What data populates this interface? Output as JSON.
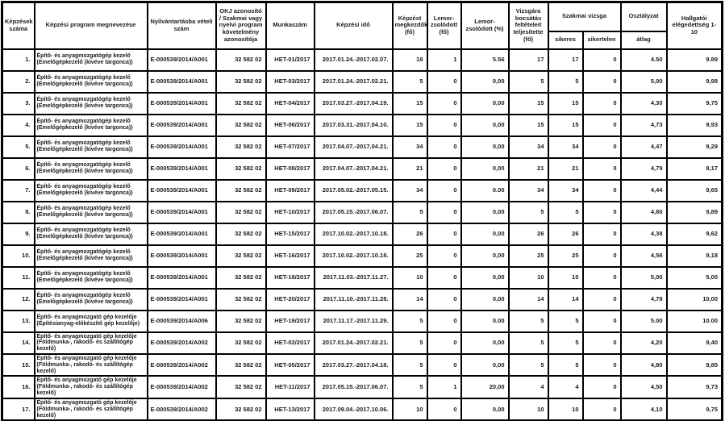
{
  "colors": {
    "background": "#ffffff",
    "border": "#000000",
    "text": "#1a1a1a"
  },
  "table": {
    "headers": {
      "kepzesek_szama": "Képzések száma",
      "program": "Képzési program megnevezése",
      "nyilvantartas": "Nyilvántartásba vételi szám",
      "okj": "OKJ azonosító / Szakmai vagy nyelvi program követelmény azonosítója",
      "munkaszam": "Munkaszám",
      "kepzesi_ido": "Képzési idő",
      "megkezdok": "Képzést megkezdők (fő)",
      "lemorzsolodott_fo": "Lemor-zsolódott (fő)",
      "lemorzsolodott_pct": "Lemor-zsolódott (%)",
      "vizsgara": "Vizsgára bocsátás feltételeit teljesítette (fő)",
      "szakmai_vizsga": "Szakmai vizsga",
      "sikeres": "sikeres",
      "sikertelen": "sikertelen",
      "osztalyzat": "Osztályzat",
      "atlag": "átlag",
      "hallgatoi": "Hallgatói elégedettség 1-10"
    },
    "rows": [
      {
        "num": "1.",
        "program": "Építő- és anyagmozgatógép kezelő (Emelőgépkezelő (kivéve targonca))",
        "reg": "E-000539/2014/A001",
        "okj": "32 582 02",
        "munkaszam": "HET-01/2017",
        "ido": "2017.01.24.-2017.02.07.",
        "megkezdok": "18",
        "lemorzs_fo": "1",
        "lemorzs_pct": "5.56",
        "vizsgara": "17",
        "sikeres": "17",
        "sikertelen": "0",
        "atlag": "4.50",
        "elegedettseg": "9.89"
      },
      {
        "num": "2.",
        "program": "Építő- és anyagmozgatógép kezelő (Emelőgépkezelő (kivéve targonca))",
        "reg": "E-000539/2014/A001",
        "okj": "32 582 02",
        "munkaszam": "HET-03/2017",
        "ido": "2017.01.24.-2017.02.21.",
        "megkezdok": "5",
        "lemorzs_fo": "0",
        "lemorzs_pct": "0,00",
        "vizsgara": "5",
        "sikeres": "5",
        "sikertelen": "0",
        "atlag": "5,00",
        "elegedettseg": "9,98"
      },
      {
        "num": "3.",
        "program": "Építő- és anyagmozgatógép kezelő (Emelőgépkezelő (kivéve targonca))",
        "reg": "E-000539/2014/A001",
        "okj": "32 582 02",
        "munkaszam": "HET-04/2017",
        "ido": "2017.03.27.-2017.04.19.",
        "megkezdok": "15",
        "lemorzs_fo": "0",
        "lemorzs_pct": "0,00",
        "vizsgara": "15",
        "sikeres": "15",
        "sikertelen": "0",
        "atlag": "4,30",
        "elegedettseg": "9,75"
      },
      {
        "num": "4.",
        "program": "Építő- és anyagmozgatógép kezelő (Emelőgépkezelő (kivéve targonca))",
        "reg": "E-000539/2014/A001",
        "okj": "32 582 02",
        "munkaszam": "HET-06/2017",
        "ido": "2017.03.31.-2017.04.10.",
        "megkezdok": "15",
        "lemorzs_fo": "0",
        "lemorzs_pct": "0,00",
        "vizsgara": "15",
        "sikeres": "15",
        "sikertelen": "0",
        "atlag": "4,73",
        "elegedettseg": "9,93"
      },
      {
        "num": "5.",
        "program": "Építő- és anyagmozgatógép kezelő (Emelőgépkezelő (kivéve targonca))",
        "reg": "E-000539/2014/A001",
        "okj": "32 582 02",
        "munkaszam": "HET-07/2017",
        "ido": "2017.04.07.-2017.04.21.",
        "megkezdok": "34",
        "lemorzs_fo": "0",
        "lemorzs_pct": "0,00",
        "vizsgara": "34",
        "sikeres": "34",
        "sikertelen": "0",
        "atlag": "4,47",
        "elegedettseg": "9,29"
      },
      {
        "num": "6.",
        "program": "Építő- és anyagmozgatógép kezelő (Emelőgépkezelő (kivéve targonca))",
        "reg": "E-000539/2014/A001",
        "okj": "32 582 02",
        "munkaszam": "HET-08/2017",
        "ido": "2017.04.07.-2017.04.21.",
        "megkezdok": "21",
        "lemorzs_fo": "0",
        "lemorzs_pct": "0,00",
        "vizsgara": "21",
        "sikeres": "21",
        "sikertelen": "0",
        "atlag": "4,79",
        "elegedettseg": "9,17"
      },
      {
        "num": "7.",
        "program": "Építő- és anyagmozgatógép kezelő (Emelőgépkezelő (kivéve targonca))",
        "reg": "E-000539/2014/A001",
        "okj": "32 582 02",
        "munkaszam": "HET-09/2017",
        "ido": "2017.05.02.-2017.05.15.",
        "megkezdok": "34",
        "lemorzs_fo": "0",
        "lemorzs_pct": "0.00",
        "vizsgara": "34",
        "sikeres": "34",
        "sikertelen": "0",
        "atlag": "4,44",
        "elegedettseg": "9,65"
      },
      {
        "num": "8.",
        "program": "Építő- és anyagmozgatógép kezelő (Emelőgépkezelő (kivéve targonca))",
        "reg": "E-000539/2014/A001",
        "okj": "32 582 02",
        "munkaszam": "HET-10/2017",
        "ido": "2017.05.15.-2017.06.07.",
        "megkezdok": "5",
        "lemorzs_fo": "0",
        "lemorzs_pct": "0,00",
        "vizsgara": "5",
        "sikeres": "5",
        "sikertelen": "0",
        "atlag": "4,80",
        "elegedettseg": "9,89"
      },
      {
        "num": "9.",
        "program": "Építő- és anyagmozgatógép kezelő (Emelőgépkezelő (kivéve targonca))",
        "reg": "E-000539/2014/A001",
        "okj": "32 582 02",
        "munkaszam": "HET-15/2017",
        "ido": "2017.10.02.-2017.10.18.",
        "megkezdok": "26",
        "lemorzs_fo": "0",
        "lemorzs_pct": "0,00",
        "vizsgara": "26",
        "sikeres": "26",
        "sikertelen": "0",
        "atlag": "4,38",
        "elegedettseg": "9,62"
      },
      {
        "num": "10.",
        "program": "Építő- és anyagmozgatógép kezelő (Emelőgépkezelő (kivéve targonca))",
        "reg": "E-000539/2014/A001",
        "okj": "32 582 02",
        "munkaszam": "HET-16/2017",
        "ido": "2017.10.02.-2017.10.18.",
        "megkezdok": "25",
        "lemorzs_fo": "0",
        "lemorzs_pct": "0,00",
        "vizsgara": "25",
        "sikeres": "25",
        "sikertelen": "0",
        "atlag": "4,56",
        "elegedettseg": "9,18"
      },
      {
        "num": "11.",
        "program": "Építő- és anyagmozgatógép kezelő (Emelőgépkezelő (kivéve targonca))",
        "reg": "E-000539/2014/A001",
        "okj": "32 582 02",
        "munkaszam": "HET-18/2017",
        "ido": "2017.11.03.-2017.11.27.",
        "megkezdok": "10",
        "lemorzs_fo": "0",
        "lemorzs_pct": "0,00",
        "vizsgara": "10",
        "sikeres": "10",
        "sikertelen": "0",
        "atlag": "5,00",
        "elegedettseg": "5,00"
      },
      {
        "num": "12.",
        "program": "Építő- és anyagmozgatógép kezelő (Emelőgépkezelő (kivéve targonca))",
        "reg": "E-000539/2014/A001",
        "okj": "32 582 02",
        "munkaszam": "HET-20/2017",
        "ido": "2017.11.10.-2017.11.28.",
        "megkezdok": "14",
        "lemorzs_fo": "0",
        "lemorzs_pct": "0,00",
        "vizsgara": "14",
        "sikeres": "14",
        "sikertelen": "0",
        "atlag": "4,78",
        "elegedettseg": "10,00"
      },
      {
        "num": "13.",
        "program": "Építő- és anyagmozgató gép kezelője (Építésianyag-előkészítő gép kezelője)",
        "reg": "E-000539/2014/A006",
        "okj": "32 582 02",
        "munkaszam": "HET-19/2017",
        "ido": "2017.11.17.-2017.11.29.",
        "megkezdok": "5",
        "lemorzs_fo": "0",
        "lemorzs_pct": "0.00",
        "vizsgara": "5",
        "sikeres": "5",
        "sikertelen": "0",
        "atlag": "5.00",
        "elegedettseg": "10.00"
      },
      {
        "num": "14.",
        "program": "Építő- és anyagmozgató gép kezelője (Földmunka-, rakodó- és szállítógép kezelő)",
        "reg": "E-000539/2014/A002",
        "okj": "32 582 02",
        "munkaszam": "HET-02/2017",
        "ido": "2017.01.24.-2017.02.21.",
        "megkezdok": "5",
        "lemorzs_fo": "0",
        "lemorzs_pct": "0,00",
        "vizsgara": "5",
        "sikeres": "5",
        "sikertelen": "0",
        "atlag": "4,20",
        "elegedettseg": "9,40"
      },
      {
        "num": "15.",
        "program": "Építő- és anyagmozgató gép kezelője (Földmunka-, rakodó- és szállítógép kezelő)",
        "reg": "E-000539/2014/A002",
        "okj": "32 582 02",
        "munkaszam": "HET-05/2017",
        "ido": "2017.03.27.-2017.04.18.",
        "megkezdok": "5",
        "lemorzs_fo": "0",
        "lemorzs_pct": "0,00",
        "vizsgara": "5",
        "sikeres": "5",
        "sikertelen": "0",
        "atlag": "4,80",
        "elegedettseg": "9,85"
      },
      {
        "num": "16.",
        "program": "Építő- és anyagmozgató gép kezelője (Földmunka-, rakodó- és szállítógép kezelő)",
        "reg": "E-000539/2014/A002",
        "okj": "32 582 02",
        "munkaszam": "HET-11/2017",
        "ido": "2017.05.15.-2017.06.07.",
        "megkezdok": "5",
        "lemorzs_fo": "1",
        "lemorzs_pct": "20,00",
        "vizsgara": "4",
        "sikeres": "4",
        "sikertelen": "0",
        "atlag": "4,50",
        "elegedettseg": "9,73"
      },
      {
        "num": "17.",
        "program": "Építő- és anyagmozgató gép kezelője (Földmunka-, rakodó- és szállítógép kezelő)",
        "reg": "E-000539/2014/A002",
        "okj": "32 582 02",
        "munkaszam": "HET-13/2017",
        "ido": "2017.09.04.-2017.10.06.",
        "megkezdok": "10",
        "lemorzs_fo": "0",
        "lemorzs_pct": "0,00",
        "vizsgara": "10",
        "sikeres": "10",
        "sikertelen": "0",
        "atlag": "4,10",
        "elegedettseg": "9,75"
      }
    ]
  }
}
